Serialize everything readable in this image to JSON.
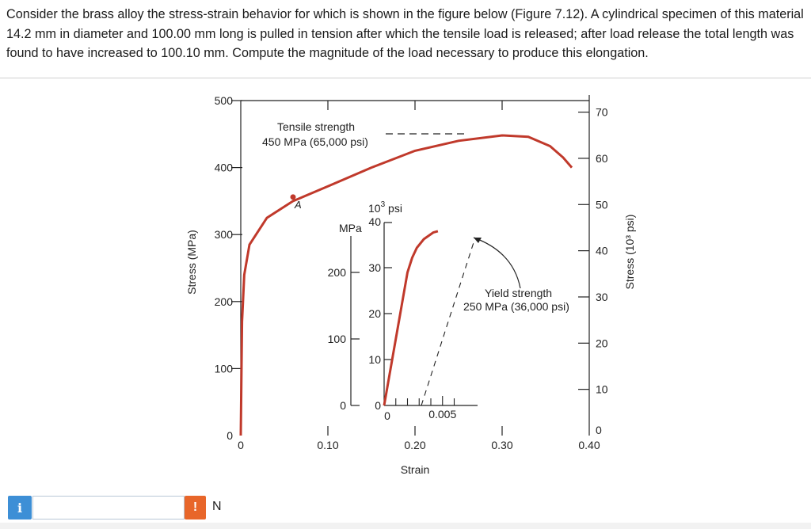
{
  "question": {
    "text": "Consider the brass alloy the stress-strain behavior for which is shown in the figure below (Figure 7.12).  A cylindrical specimen of this material 14.2 mm in diameter and 100.00 mm long is pulled in tension after which the tensile load is released; after load release the total length was found to have increased to 100.10 mm.  Compute the magnitude of the load necessary to produce this elongation."
  },
  "answer": {
    "info_icon": "i",
    "input_value": "",
    "warning_icon": "!",
    "unit": "N"
  },
  "colors": {
    "curve": "#c0392b",
    "axis": "#222222",
    "info": "#3d8fd6",
    "warning": "#e8662a"
  },
  "chart_data": [
    {
      "type": "line",
      "name": "main",
      "xlabel": "Strain",
      "ylabel": "Stress (MPa)",
      "y2label": "Stress (10³ psi)",
      "xlim": [
        0,
        0.4
      ],
      "ylim": [
        0,
        500
      ],
      "y2lim": [
        0,
        72.5
      ],
      "xticks": [
        0,
        0.1,
        0.2,
        0.3,
        0.4
      ],
      "xtick_labels": [
        "0",
        "0.10",
        "0.20",
        "0.30",
        "0.40"
      ],
      "yticks": [
        0,
        100,
        200,
        300,
        400,
        500
      ],
      "ytick_labels": [
        "0",
        "100",
        "200",
        "300",
        "400",
        "500"
      ],
      "y2ticks": [
        0,
        10,
        20,
        30,
        40,
        50,
        60,
        70
      ],
      "y2tick_labels": [
        "0",
        "10",
        "20",
        "30",
        "40",
        "50",
        "60",
        "70"
      ],
      "series": [
        {
          "x": [
            0,
            0.0006,
            0.0015,
            0.004,
            0.01,
            0.03,
            0.06,
            0.1,
            0.15,
            0.2,
            0.25,
            0.3,
            0.33,
            0.355,
            0.37,
            0.38
          ],
          "y": [
            0,
            75,
            170,
            240,
            285,
            325,
            350,
            372,
            400,
            425,
            440,
            448,
            446,
            432,
            415,
            400
          ]
        }
      ],
      "marker": {
        "label": "A",
        "x": 0.06,
        "y": 356
      },
      "tensile_strength": {
        "label_line1": "Tensile strength",
        "label_line2": "450 MPa (65,000 psi)",
        "value": 450
      },
      "grid": false
    },
    {
      "type": "line",
      "name": "inset",
      "xlim": [
        0,
        0.008
      ],
      "ylim": [
        0,
        275
      ],
      "xtick_labels": [
        "0",
        "0.005"
      ],
      "ytick_labels": [
        "0",
        "100",
        "200"
      ],
      "ylabel": "MPa",
      "y2label_prefix": "10",
      "y2label_sup": "3",
      "y2label_suffix": " psi",
      "y2tick_labels": [
        "0",
        "10",
        "20",
        "30",
        "40"
      ],
      "series": [
        {
          "x": [
            0,
            0.002,
            0.0024,
            0.0028,
            0.0034,
            0.0042,
            0.0046
          ],
          "y": [
            0,
            200,
            222,
            237,
            250,
            260,
            262
          ]
        }
      ],
      "yield_strength": {
        "label_line1": "Yield strength",
        "label_line2": "250 MPa (36,000 psi)",
        "value": 250
      }
    }
  ]
}
